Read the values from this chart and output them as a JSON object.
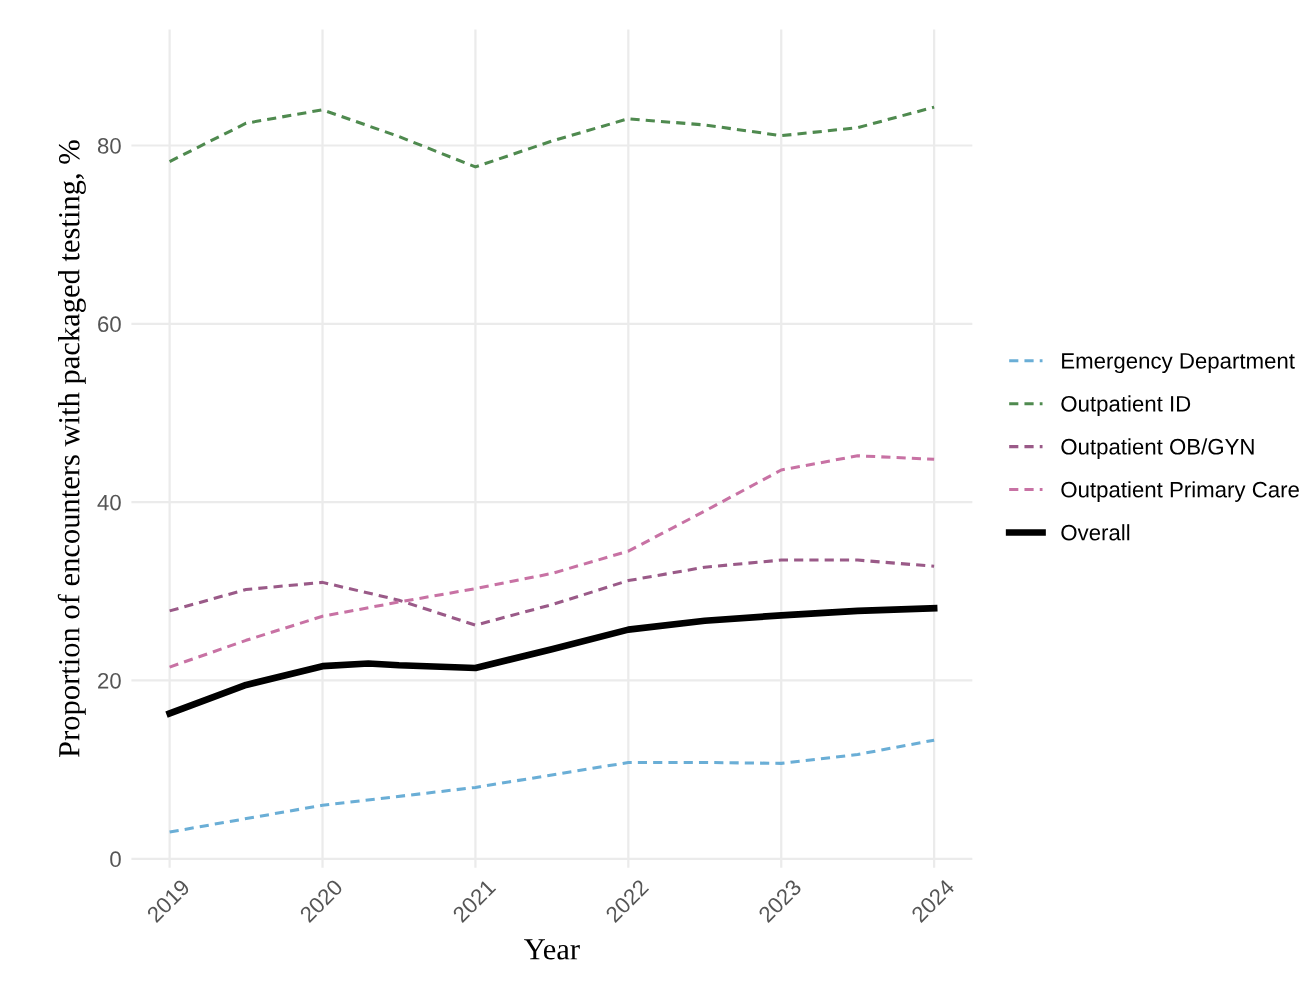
{
  "chart_data": {
    "type": "line",
    "xlabel": "Year",
    "ylabel": "Proportion of encounters with packaged testing, %",
    "xlim": [
      2018.75,
      2024.25
    ],
    "xticks": [
      2019,
      2020,
      2021,
      2022,
      2023,
      2024
    ],
    "ylim": [
      -1,
      93
    ],
    "yticks": [
      0,
      20,
      40,
      60,
      80
    ],
    "grid": true,
    "legend": "right",
    "line_style": "dashed",
    "marker": "none",
    "series": [
      {
        "name": "Emergency Department",
        "color": "#6aaed6",
        "x": [
          2019,
          2020,
          2021,
          2022,
          2022.5,
          2023,
          2023.5,
          2024
        ],
        "values": [
          3,
          6,
          8,
          10.8,
          10.8,
          10.7,
          11.7,
          13.3
        ]
      },
      {
        "name": "Outpatient ID",
        "color": "#4f8a4f",
        "x": [
          2019,
          2019.5,
          2020,
          2020.5,
          2021,
          2021.5,
          2022,
          2022.5,
          2023,
          2023.5,
          2024
        ],
        "values": [
          78.2,
          82.5,
          84,
          81,
          77.6,
          80.5,
          83,
          82.3,
          81.1,
          82,
          84.3
        ]
      },
      {
        "name": "Outpatient OB/GYN",
        "color": "#9a5a88",
        "x": [
          2019,
          2019.5,
          2020,
          2020.5,
          2021,
          2021.5,
          2022,
          2022.5,
          2023,
          2023.5,
          2024
        ],
        "values": [
          27.8,
          30.2,
          31,
          29,
          26.2,
          28.5,
          31.2,
          32.7,
          33.5,
          33.5,
          32.8
        ]
      },
      {
        "name": "Outpatient Primary Care",
        "color": "#c872a4",
        "x": [
          2019,
          2019.5,
          2020,
          2020.5,
          2021,
          2021.5,
          2022,
          2022.5,
          2023,
          2023.5,
          2024
        ],
        "values": [
          21.5,
          24.5,
          27.2,
          28.8,
          30.3,
          32,
          34.5,
          39,
          43.6,
          45.2,
          44.8
        ]
      },
      {
        "name": "Overall",
        "color": "#000000",
        "line_style": "solid",
        "x": [
          2019,
          2019.5,
          2020,
          2020.3,
          2020.5,
          2021,
          2021.5,
          2022,
          2022.5,
          2023,
          2023.5,
          2024
        ],
        "values": [
          16.3,
          19.5,
          21.6,
          21.9,
          21.7,
          21.4,
          23.5,
          25.7,
          26.7,
          27.3,
          27.8,
          28.1
        ]
      }
    ]
  }
}
